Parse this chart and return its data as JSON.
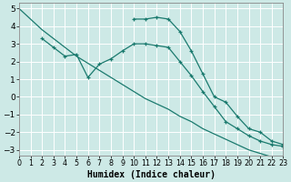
{
  "xlabel": "Humidex (Indice chaleur)",
  "bg_color": "#cde9e6",
  "grid_color": "#b0d8d4",
  "line_color": "#1a7a6e",
  "marker": "+",
  "line1": {
    "x": [
      0,
      1,
      2,
      3,
      4,
      5,
      6,
      7,
      8,
      9,
      10,
      11,
      12,
      13,
      14,
      15,
      16,
      17,
      18,
      19,
      20,
      21,
      22,
      23
    ],
    "y": [
      5.0,
      4.4,
      3.8,
      3.3,
      2.8,
      2.3,
      1.9,
      1.5,
      1.1,
      0.7,
      0.3,
      -0.1,
      -0.4,
      -0.7,
      -1.1,
      -1.4,
      -1.8,
      -2.1,
      -2.4,
      -2.7,
      -3.0,
      -3.2,
      -3.4,
      -3.6
    ]
  },
  "line2": {
    "x": [
      2,
      3,
      4,
      5,
      6,
      7,
      8,
      9,
      10,
      11,
      12,
      13,
      14,
      15,
      16,
      17,
      18,
      19,
      20,
      21,
      22,
      23
    ],
    "y": [
      3.3,
      2.8,
      2.3,
      2.4,
      1.1,
      1.85,
      2.15,
      2.6,
      3.0,
      3.0,
      2.9,
      2.8,
      2.0,
      1.2,
      0.3,
      -0.55,
      -1.4,
      -1.8,
      -2.2,
      -2.5,
      -2.7,
      -2.8
    ]
  },
  "line3": {
    "x": [
      10,
      11,
      12,
      13,
      14,
      15,
      16,
      17,
      18,
      19,
      20,
      21,
      22,
      23
    ],
    "y": [
      4.4,
      4.4,
      4.5,
      4.4,
      3.7,
      2.6,
      1.3,
      0.0,
      -0.3,
      -1.1,
      -1.8,
      -2.0,
      -2.5,
      -2.7
    ]
  },
  "xlim": [
    0,
    23
  ],
  "ylim": [
    -3.3,
    5.3
  ],
  "yticks": [
    -3,
    -2,
    -1,
    0,
    1,
    2,
    3,
    4,
    5
  ],
  "xticks": [
    0,
    1,
    2,
    3,
    4,
    5,
    6,
    7,
    8,
    9,
    10,
    11,
    12,
    13,
    14,
    15,
    16,
    17,
    18,
    19,
    20,
    21,
    22,
    23
  ],
  "xlabel_fontsize": 7,
  "tick_fontsize": 6.5
}
